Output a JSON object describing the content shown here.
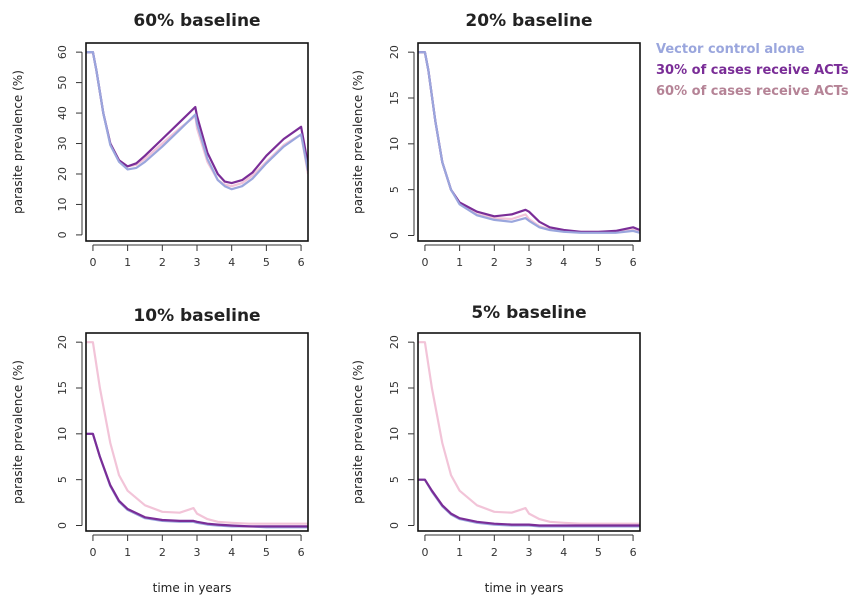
{
  "legend": [
    {
      "label": "Vector control alone",
      "color": "#9aa6dd"
    },
    {
      "label": "30% of cases receive ACTs",
      "color": "#7a2d97"
    },
    {
      "label": "60% of cases receive ACTs",
      "color": "#b58396"
    }
  ],
  "chart_data": [
    {
      "type": "line",
      "title": "60% baseline",
      "xlabel": "",
      "ylabel": "parasite prevalence (%)",
      "xlim": [
        -0.2,
        6.2
      ],
      "ylim": [
        -2,
        63
      ],
      "xticks": [
        0,
        1,
        2,
        3,
        4,
        5,
        6
      ],
      "yticks": [
        0,
        10,
        20,
        30,
        40,
        50,
        60
      ],
      "series": [
        {
          "color": "#f2c4d8",
          "x": [
            -0.2,
            0,
            0.1,
            0.3,
            0.5,
            0.75,
            1,
            1.25,
            1.5,
            2,
            2.5,
            2.95,
            3,
            3.3,
            3.6,
            3.8,
            4,
            4.3,
            4.6,
            5,
            5.5,
            6,
            6.2
          ],
          "y": [
            60,
            60,
            54,
            40,
            30,
            24.5,
            22.5,
            23,
            25,
            30,
            35,
            39,
            35,
            24,
            18,
            16.5,
            16,
            17,
            19.5,
            24,
            29.5,
            33,
            20
          ]
        },
        {
          "color": "#7a2d97",
          "x": [
            -0.2,
            0,
            0.1,
            0.3,
            0.5,
            0.75,
            1,
            1.25,
            1.5,
            2,
            2.5,
            2.95,
            3,
            3.3,
            3.6,
            3.8,
            4,
            4.3,
            4.6,
            5,
            5.5,
            6,
            6.2
          ],
          "y": [
            60,
            60,
            54,
            40,
            30,
            24.5,
            22.5,
            23.5,
            26,
            31.5,
            37,
            42,
            39,
            27,
            20,
            17.5,
            17,
            18,
            20.5,
            26,
            31.5,
            35.5,
            23
          ]
        },
        {
          "color": "#9aa6dd",
          "x": [
            -0.2,
            0,
            0.1,
            0.3,
            0.5,
            0.75,
            1,
            1.25,
            1.5,
            2,
            2.5,
            2.95,
            3,
            3.3,
            3.6,
            3.8,
            4,
            4.3,
            4.6,
            5,
            5.5,
            6,
            6.2
          ],
          "y": [
            60,
            60,
            54,
            40,
            29.5,
            24,
            21.5,
            22,
            24,
            29,
            34.5,
            39.5,
            36.5,
            25,
            18,
            16,
            15,
            16,
            18.5,
            23.5,
            29,
            33,
            21
          ]
        }
      ]
    },
    {
      "type": "line",
      "title": "20% baseline",
      "xlabel": "",
      "ylabel": "parasite prevalence (%)",
      "xlim": [
        -0.2,
        6.2
      ],
      "ylim": [
        -0.6,
        21
      ],
      "xticks": [
        0,
        1,
        2,
        3,
        4,
        5,
        6
      ],
      "yticks": [
        0,
        5,
        10,
        15,
        20
      ],
      "series": [
        {
          "color": "#f2c4d8",
          "x": [
            -0.2,
            0,
            0.1,
            0.3,
            0.5,
            0.75,
            1,
            1.5,
            2,
            2.5,
            2.9,
            3,
            3.3,
            3.6,
            4,
            4.5,
            5,
            5.5,
            6,
            6.2
          ],
          "y": [
            20,
            20,
            18,
            12.5,
            8,
            5,
            3.5,
            2.3,
            1.9,
            1.8,
            2.3,
            1.8,
            1,
            0.7,
            0.5,
            0.4,
            0.4,
            0.4,
            0.6,
            0.4
          ]
        },
        {
          "color": "#7a2d97",
          "x": [
            -0.2,
            0,
            0.1,
            0.3,
            0.5,
            0.75,
            1,
            1.5,
            2,
            2.5,
            2.9,
            3,
            3.3,
            3.6,
            4,
            4.5,
            5,
            5.5,
            6,
            6.2
          ],
          "y": [
            20,
            20,
            18,
            12.5,
            8,
            5,
            3.6,
            2.6,
            2.1,
            2.3,
            2.8,
            2.6,
            1.5,
            0.9,
            0.6,
            0.4,
            0.4,
            0.5,
            0.9,
            0.6
          ]
        },
        {
          "color": "#9aa6dd",
          "x": [
            -0.2,
            0,
            0.1,
            0.3,
            0.5,
            0.75,
            1,
            1.5,
            2,
            2.5,
            2.9,
            3,
            3.3,
            3.6,
            4,
            4.5,
            5,
            5.5,
            6,
            6.2
          ],
          "y": [
            20,
            20,
            18,
            12.5,
            8,
            5,
            3.4,
            2.2,
            1.7,
            1.5,
            1.9,
            1.6,
            0.9,
            0.6,
            0.4,
            0.3,
            0.3,
            0.3,
            0.5,
            0.3
          ]
        }
      ]
    },
    {
      "type": "line",
      "title": "10% baseline",
      "xlabel": "time in years",
      "ylabel": "parasite prevalence (%)",
      "xlim": [
        -0.2,
        6.2
      ],
      "ylim": [
        -0.6,
        21
      ],
      "xticks": [
        0,
        1,
        2,
        3,
        4,
        5,
        6
      ],
      "yticks": [
        0,
        5,
        10,
        15,
        20
      ],
      "series": [
        {
          "color": "#f2c4d8",
          "x": [
            -0.2,
            0,
            0.2,
            0.5,
            0.75,
            1,
            1.5,
            2,
            2.5,
            2.9,
            3,
            3.3,
            3.6,
            4,
            4.5,
            5,
            5.5,
            6,
            6.2
          ],
          "y": [
            20,
            20,
            15,
            9,
            5.5,
            3.8,
            2.2,
            1.5,
            1.4,
            1.9,
            1.3,
            0.7,
            0.4,
            0.3,
            0.2,
            0.2,
            0.2,
            0.2,
            0.2
          ]
        },
        {
          "color": "#9aa6dd",
          "x": [
            -0.2,
            0,
            0.2,
            0.5,
            0.75,
            1,
            1.5,
            2,
            2.5,
            2.9,
            3,
            3.3,
            3.6,
            4,
            4.5,
            5,
            5.5,
            6,
            6.2
          ],
          "y": [
            10,
            10,
            7.5,
            4.3,
            2.6,
            1.7,
            0.8,
            0.5,
            0.4,
            0.4,
            0.3,
            0.1,
            0,
            -0.1,
            -0.1,
            -0.2,
            -0.2,
            -0.2,
            -0.2
          ]
        },
        {
          "color": "#7a2d97",
          "x": [
            -0.2,
            0,
            0.2,
            0.5,
            0.75,
            1,
            1.5,
            2,
            2.5,
            2.9,
            3,
            3.3,
            3.6,
            4,
            4.5,
            5,
            5.5,
            6,
            6.2
          ],
          "y": [
            10,
            10,
            7.5,
            4.4,
            2.7,
            1.8,
            0.9,
            0.6,
            0.5,
            0.5,
            0.4,
            0.2,
            0.1,
            0,
            -0.1,
            -0.1,
            -0.1,
            -0.1,
            -0.1
          ]
        }
      ]
    },
    {
      "type": "line",
      "title": "5% baseline",
      "xlabel": "time in years",
      "ylabel": "parasite prevalence (%)",
      "xlim": [
        -0.2,
        6.2
      ],
      "ylim": [
        -0.6,
        21
      ],
      "xticks": [
        0,
        1,
        2,
        3,
        4,
        5,
        6
      ],
      "yticks": [
        0,
        5,
        10,
        15,
        20
      ],
      "series": [
        {
          "color": "#f2c4d8",
          "x": [
            -0.2,
            0,
            0.2,
            0.5,
            0.75,
            1,
            1.5,
            2,
            2.5,
            2.9,
            3,
            3.3,
            3.6,
            4,
            4.5,
            5,
            5.5,
            6,
            6.2
          ],
          "y": [
            20,
            20,
            15,
            9,
            5.5,
            3.8,
            2.2,
            1.5,
            1.4,
            1.9,
            1.3,
            0.7,
            0.4,
            0.3,
            0.2,
            0.2,
            0.2,
            0.2,
            0.2
          ]
        },
        {
          "color": "#9aa6dd",
          "x": [
            -0.2,
            0,
            0.2,
            0.5,
            0.75,
            1,
            1.5,
            2,
            2.5,
            2.9,
            3,
            3.3,
            3.6,
            4,
            4.5,
            5,
            5.5,
            6,
            6.2
          ],
          "y": [
            5,
            5,
            3.7,
            2.1,
            1.2,
            0.7,
            0.3,
            0.1,
            0,
            0,
            0,
            -0.1,
            -0.1,
            -0.1,
            -0.1,
            -0.1,
            -0.1,
            -0.1,
            -0.1
          ]
        },
        {
          "color": "#7a2d97",
          "x": [
            -0.2,
            0,
            0.2,
            0.5,
            0.75,
            1,
            1.5,
            2,
            2.5,
            2.9,
            3,
            3.3,
            3.6,
            4,
            4.5,
            5,
            5.5,
            6,
            6.2
          ],
          "y": [
            5,
            5,
            3.8,
            2.2,
            1.3,
            0.8,
            0.4,
            0.2,
            0.1,
            0.1,
            0.1,
            0,
            0,
            0,
            0,
            0,
            0,
            0,
            0
          ]
        }
      ]
    }
  ]
}
